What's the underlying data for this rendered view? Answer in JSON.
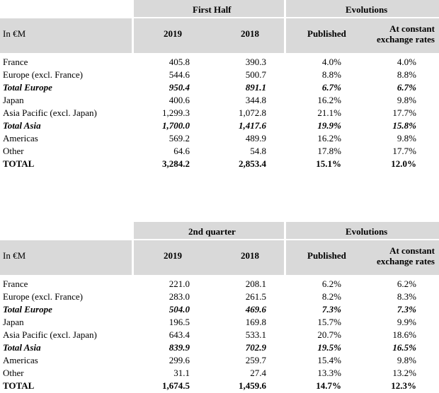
{
  "tables": [
    {
      "period": "First Half",
      "evolutions": "Evolutions",
      "unit": "In €M",
      "year1": "2019",
      "year2": "2018",
      "published": "Published",
      "constant": "At constant",
      "constant2": "exchange rates",
      "rows": [
        {
          "label": "France",
          "v2019": "405.8",
          "v2018": "390.3",
          "pub": "4.0%",
          "cst": "4.0%"
        },
        {
          "label": "Europe (excl. France)",
          "v2019": "544.6",
          "v2018": "500.7",
          "pub": "8.8%",
          "cst": "8.8%"
        },
        {
          "label": "Total Europe",
          "v2019": "950.4",
          "v2018": "891.1",
          "pub": "6.7%",
          "cst": "6.7%"
        },
        {
          "label": "Japan",
          "v2019": "400.6",
          "v2018": "344.8",
          "pub": "16.2%",
          "cst": "9.8%"
        },
        {
          "label": "Asia Pacific (excl. Japan)",
          "v2019": "1,299.3",
          "v2018": "1,072.8",
          "pub": "21.1%",
          "cst": "17.7%"
        },
        {
          "label": "Total Asia",
          "v2019": "1,700.0",
          "v2018": "1,417.6",
          "pub": "19.9%",
          "cst": "15.8%"
        },
        {
          "label": "Americas",
          "v2019": "569.2",
          "v2018": "489.9",
          "pub": "16.2%",
          "cst": "9.8%"
        },
        {
          "label": "Other",
          "v2019": "64.6",
          "v2018": "54.8",
          "pub": "17.8%",
          "cst": "17.7%"
        },
        {
          "label": "TOTAL",
          "v2019": "3,284.2",
          "v2018": "2,853.4",
          "pub": "15.1%",
          "cst": "12.0%"
        }
      ]
    },
    {
      "period": "2nd quarter",
      "evolutions": "Evolutions",
      "unit": "In €M",
      "year1": "2019",
      "year2": "2018",
      "published": "Published",
      "constant": "At constant",
      "constant2": "exchange rates",
      "rows": [
        {
          "label": "France",
          "v2019": "221.0",
          "v2018": "208.1",
          "pub": "6.2%",
          "cst": "6.2%"
        },
        {
          "label": "Europe (excl. France)",
          "v2019": "283.0",
          "v2018": "261.5",
          "pub": "8.2%",
          "cst": "8.3%"
        },
        {
          "label": "Total Europe",
          "v2019": "504.0",
          "v2018": "469.6",
          "pub": "7.3%",
          "cst": "7.3%"
        },
        {
          "label": "Japan",
          "v2019": "196.5",
          "v2018": "169.8",
          "pub": "15.7%",
          "cst": "9.9%"
        },
        {
          "label": "Asia Pacific (excl. Japan)",
          "v2019": "643.4",
          "v2018": "533.1",
          "pub": "20.7%",
          "cst": "18.6%"
        },
        {
          "label": "Total Asia",
          "v2019": "839.9",
          "v2018": "702.9",
          "pub": "19.5%",
          "cst": "16.5%"
        },
        {
          "label": "Americas",
          "v2019": "299.6",
          "v2018": "259.7",
          "pub": "15.4%",
          "cst": "9.8%"
        },
        {
          "label": "Other",
          "v2019": "31.1",
          "v2018": "27.4",
          "pub": "13.3%",
          "cst": "13.2%"
        },
        {
          "label": "TOTAL",
          "v2019": "1,674.5",
          "v2018": "1,459.6",
          "pub": "14.7%",
          "cst": "12.3%"
        }
      ]
    }
  ]
}
